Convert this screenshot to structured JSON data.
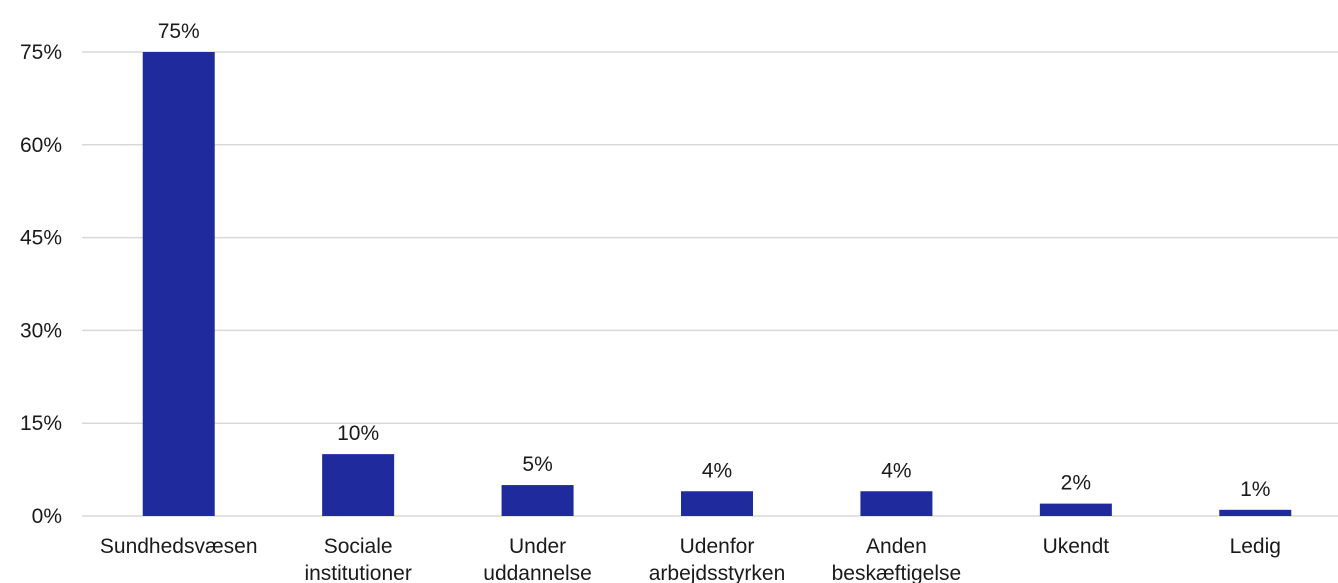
{
  "chart_data": {
    "type": "bar",
    "title": "",
    "xlabel": "",
    "ylabel": "",
    "categories": [
      [
        "Sundhedsvæsen"
      ],
      [
        "Sociale",
        "institutioner"
      ],
      [
        "Under",
        "uddannelse"
      ],
      [
        "Udenfor",
        "arbejdsstyrken"
      ],
      [
        "Anden",
        "beskæftigelse"
      ],
      [
        "Ukendt"
      ],
      [
        "Ledig"
      ]
    ],
    "values": [
      75,
      10,
      5,
      4,
      4,
      2,
      1
    ],
    "value_labels": [
      "75%",
      "10%",
      "5%",
      "4%",
      "4%",
      "2%",
      "1%"
    ],
    "ylim": [
      0,
      75
    ],
    "yticks": [
      0,
      15,
      30,
      45,
      60,
      75
    ],
    "ytick_labels": [
      "0%",
      "15%",
      "30%",
      "45%",
      "60%",
      "75%"
    ],
    "grid": true,
    "legend": "none",
    "colors": {
      "bar": "#1f2a9c",
      "grid": "#d9d9d9"
    }
  }
}
